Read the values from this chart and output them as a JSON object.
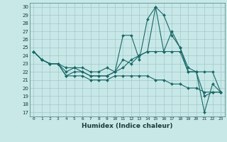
{
  "xlabel": "Humidex (Indice chaleur)",
  "bg_color": "#c8e8e8",
  "grid_color": "#a0c8c8",
  "line_color": "#1a6868",
  "xlim": [
    -0.5,
    23.5
  ],
  "ylim": [
    16.5,
    30.5
  ],
  "yticks": [
    17,
    18,
    19,
    20,
    21,
    22,
    23,
    24,
    25,
    26,
    27,
    28,
    29,
    30
  ],
  "xticks": [
    0,
    1,
    2,
    3,
    4,
    5,
    6,
    7,
    8,
    9,
    10,
    11,
    12,
    13,
    14,
    15,
    16,
    17,
    18,
    19,
    20,
    21,
    22,
    23
  ],
  "lines": [
    [
      24.5,
      23.5,
      23.0,
      23.0,
      22.0,
      22.5,
      22.0,
      21.5,
      21.5,
      21.5,
      22.0,
      23.5,
      23.0,
      24.0,
      24.5,
      30.0,
      29.0,
      26.5,
      25.0,
      22.0,
      22.0,
      17.0,
      20.5,
      19.5
    ],
    [
      24.5,
      23.5,
      23.0,
      23.0,
      22.5,
      22.5,
      22.5,
      22.0,
      22.0,
      22.5,
      22.0,
      26.5,
      26.5,
      23.5,
      28.5,
      30.0,
      24.5,
      27.0,
      25.0,
      22.5,
      22.0,
      19.0,
      19.5,
      19.5
    ],
    [
      24.5,
      23.5,
      23.0,
      23.0,
      21.5,
      22.0,
      22.0,
      21.5,
      21.5,
      21.5,
      22.0,
      22.5,
      23.5,
      24.0,
      24.5,
      24.5,
      24.5,
      24.5,
      24.5,
      22.0,
      22.0,
      22.0,
      22.0,
      19.5
    ],
    [
      24.5,
      23.5,
      23.0,
      23.0,
      21.5,
      21.5,
      21.5,
      21.0,
      21.0,
      21.0,
      21.5,
      21.5,
      21.5,
      21.5,
      21.5,
      21.0,
      21.0,
      20.5,
      20.5,
      20.0,
      20.0,
      19.5,
      19.5,
      19.5
    ]
  ]
}
